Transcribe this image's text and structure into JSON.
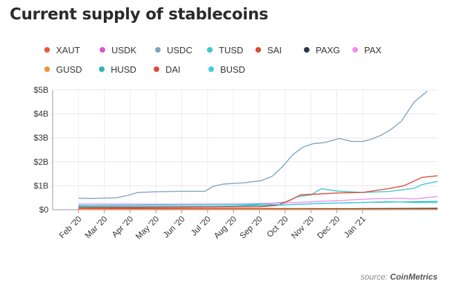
{
  "chart_data": {
    "type": "line",
    "title": "Current supply of stablecoins",
    "y_ticks": [
      "$5B",
      "$4B",
      "$3B",
      "$2B",
      "$1B",
      "$0"
    ],
    "ylim": [
      0,
      5
    ],
    "x_ticks": [
      "Feb '20",
      "Mar '20",
      "Apr '20",
      "May '20",
      "Jun '20",
      "Jul '20",
      "Aug '20",
      "Sep '20",
      "Oct '20",
      "Nov '20",
      "Dec '20",
      "Jan '21"
    ],
    "grid": true,
    "legend_position": "top",
    "series": [
      {
        "name": "XAUT",
        "color": "#e8573f",
        "values": [
          [
            0,
            0.01
          ],
          [
            12,
            0.01
          ]
        ]
      },
      {
        "name": "USDK",
        "color": "#e34fd8",
        "values": [
          [
            0,
            0.02
          ],
          [
            7,
            0.02
          ],
          [
            12,
            0.03
          ]
        ]
      },
      {
        "name": "USDC",
        "color": "#7fa3c2",
        "values": [
          [
            0,
            0.48
          ],
          [
            0.5,
            0.47
          ],
          [
            1.5,
            0.5
          ],
          [
            2,
            0.62
          ],
          [
            2.3,
            0.72
          ],
          [
            3,
            0.75
          ],
          [
            4,
            0.77
          ],
          [
            4.9,
            0.77
          ],
          [
            5.2,
            0.97
          ],
          [
            5.6,
            1.07
          ],
          [
            6,
            1.1
          ],
          [
            6.4,
            1.12
          ],
          [
            7.1,
            1.22
          ],
          [
            7.5,
            1.4
          ],
          [
            7.9,
            1.8
          ],
          [
            8.3,
            2.3
          ],
          [
            8.7,
            2.62
          ],
          [
            9.1,
            2.76
          ],
          [
            9.5,
            2.8
          ],
          [
            10.1,
            2.97
          ],
          [
            10.6,
            2.85
          ],
          [
            11,
            2.85
          ],
          [
            11.3,
            2.93
          ],
          [
            11.7,
            3.1
          ],
          [
            12.1,
            3.35
          ],
          [
            12.5,
            3.7
          ],
          [
            13,
            4.5
          ],
          [
            13.5,
            4.95
          ]
        ]
      },
      {
        "name": "TUSD",
        "color": "#41c5d0",
        "values": [
          [
            0,
            0.1
          ],
          [
            4.8,
            0.12
          ],
          [
            6,
            0.15
          ],
          [
            7,
            0.22
          ],
          [
            8,
            0.32
          ],
          [
            8.5,
            0.55
          ],
          [
            9,
            0.62
          ],
          [
            9.4,
            0.88
          ],
          [
            10,
            0.78
          ],
          [
            11,
            0.72
          ],
          [
            12,
            0.76
          ],
          [
            13,
            0.9
          ],
          [
            13.3,
            1.05
          ],
          [
            13.9,
            1.18
          ]
        ]
      },
      {
        "name": "SAI",
        "color": "#d94b32",
        "values": [
          [
            0,
            0.06
          ],
          [
            6,
            0.05
          ],
          [
            7,
            0.05
          ],
          [
            12,
            0.04
          ],
          [
            13.9,
            0.03
          ]
        ]
      },
      {
        "name": "PAXG",
        "color": "#2c3444",
        "values": [
          [
            0,
            0.01
          ],
          [
            8,
            0.03
          ],
          [
            13.9,
            0.06
          ]
        ]
      },
      {
        "name": "PAX",
        "color": "#f08ef0",
        "values": [
          [
            0,
            0.24
          ],
          [
            3,
            0.23
          ],
          [
            6,
            0.24
          ],
          [
            8,
            0.28
          ],
          [
            10,
            0.38
          ],
          [
            11.5,
            0.46
          ],
          [
            12.5,
            0.48
          ],
          [
            13,
            0.45
          ],
          [
            13.9,
            0.55
          ]
        ]
      },
      {
        "name": "GUSD",
        "color": "#f2923c",
        "values": [
          [
            0,
            0.01
          ],
          [
            13.9,
            0.02
          ]
        ]
      },
      {
        "name": "HUSD",
        "color": "#2bb6b6",
        "values": [
          [
            0,
            0.13
          ],
          [
            5,
            0.14
          ],
          [
            7,
            0.17
          ],
          [
            8,
            0.2
          ],
          [
            9,
            0.25
          ],
          [
            10,
            0.28
          ],
          [
            11,
            0.3
          ],
          [
            12,
            0.32
          ],
          [
            13.9,
            0.35
          ]
        ]
      },
      {
        "name": "DAI",
        "color": "#e04a3a",
        "values": [
          [
            0,
            0.08
          ],
          [
            7,
            0.12
          ],
          [
            7.7,
            0.18
          ],
          [
            8.2,
            0.4
          ],
          [
            8.6,
            0.62
          ],
          [
            9.2,
            0.65
          ],
          [
            10,
            0.7
          ],
          [
            11,
            0.72
          ],
          [
            12,
            0.88
          ],
          [
            12.6,
            1.0
          ],
          [
            13,
            1.2
          ],
          [
            13.3,
            1.35
          ],
          [
            13.9,
            1.42
          ]
        ]
      },
      {
        "name": "BUSD",
        "color": "#3fcde0",
        "values": [
          [
            0,
            0.18
          ],
          [
            4,
            0.2
          ],
          [
            6,
            0.22
          ],
          [
            7,
            0.24
          ],
          [
            8,
            0.2
          ],
          [
            9,
            0.25
          ],
          [
            10,
            0.28
          ],
          [
            11,
            0.3
          ],
          [
            12,
            0.34
          ],
          [
            13,
            0.3
          ],
          [
            13.9,
            0.3
          ]
        ]
      }
    ]
  },
  "source": {
    "prefix": "source: ",
    "name": "CoinMetrics"
  }
}
